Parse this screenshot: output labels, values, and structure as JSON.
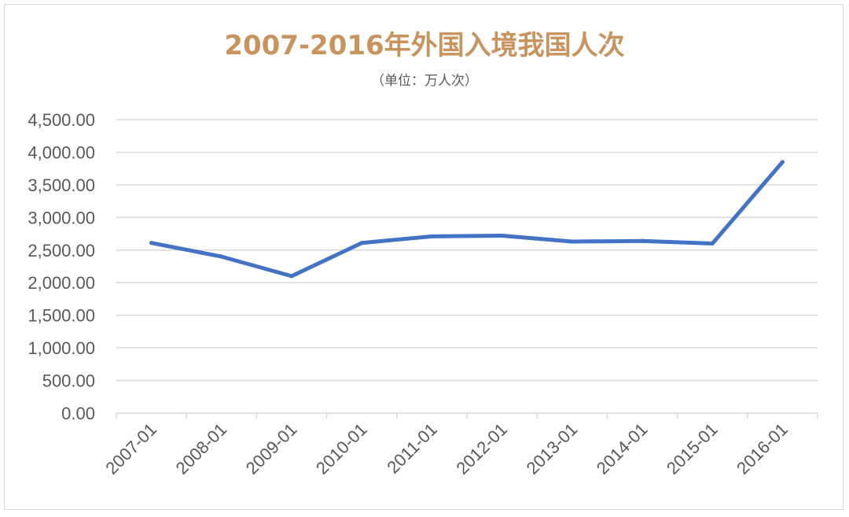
{
  "chart_data": {
    "type": "line",
    "title": "2007-2016年外国入境我国人次",
    "subtitle": "（单位：万人次）",
    "categories": [
      "2007-01",
      "2008-01",
      "2009-01",
      "2010-01",
      "2011-01",
      "2012-01",
      "2013-01",
      "2014-01",
      "2015-01",
      "2016-01"
    ],
    "series": [
      {
        "values": [
          2610,
          2400,
          2100,
          2610,
          2710,
          2720,
          2630,
          2640,
          2600,
          3850
        ],
        "color": "#4472c4"
      }
    ],
    "y_ticks": [
      "0.00",
      "500.00",
      "1,000.00",
      "1,500.00",
      "2,000.00",
      "2,500.00",
      "3,000.00",
      "3,500.00",
      "4,000.00",
      "4,500.00"
    ],
    "ylim": [
      0,
      4500
    ],
    "y_step": 500,
    "grid": true,
    "title_color": "#c9935e",
    "grid_color": "#d9d9d9",
    "axis_text_color": "#595959"
  }
}
